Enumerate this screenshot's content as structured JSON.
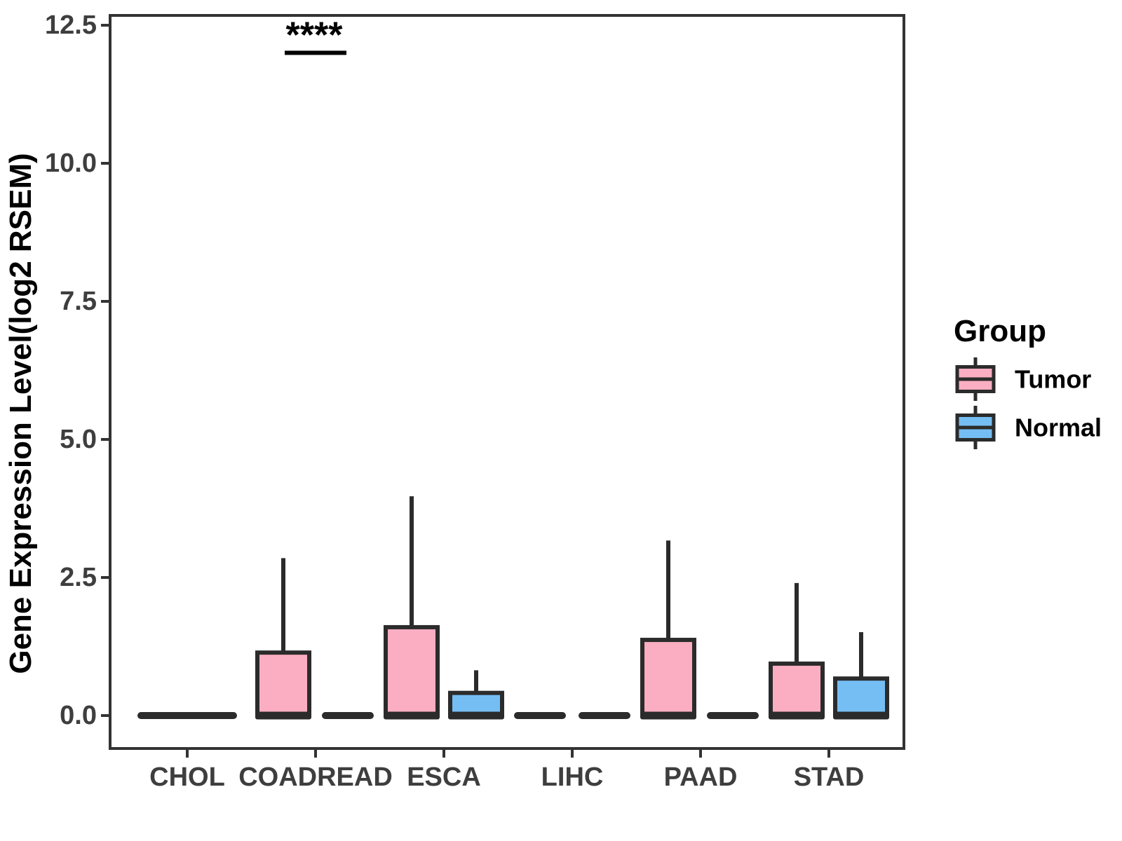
{
  "y_axis": {
    "label": "Gene Expression Level(log2 RSEM)",
    "tick_labels": [
      "0.0",
      "2.5",
      "5.0",
      "7.5",
      "10.0",
      "12.5"
    ],
    "tick_values": [
      0,
      2.5,
      5,
      7.5,
      10,
      12.5
    ]
  },
  "x_axis": {
    "categories": [
      "CHOL",
      "COADREAD",
      "ESCA",
      "LIHC",
      "PAAD",
      "STAD"
    ]
  },
  "legend": {
    "title": "Group",
    "entries": [
      {
        "label": "Tumor",
        "color": "#FBAEC2"
      },
      {
        "label": "Normal",
        "color": "#74BEF4"
      }
    ]
  },
  "annotation": {
    "text": "****",
    "category": "COADREAD",
    "y_value": 12.0
  },
  "colors": {
    "tumor": "#FBAEC2",
    "normal": "#74BEF4",
    "box_stroke": "#2B2B2B",
    "axis_text": "#3E3E3E",
    "axis_title": "#000000",
    "panel_border": "#333333"
  },
  "chart_data": {
    "type": "boxplot",
    "title": "",
    "xlabel": "",
    "ylabel": "Gene Expression Level(log2 RSEM)",
    "ylim": [
      0,
      12.5
    ],
    "yticks": [
      0,
      2.5,
      5,
      7.5,
      10,
      12.5
    ],
    "grid": false,
    "legend_position": "right",
    "categories": [
      "CHOL",
      "COADREAD",
      "ESCA",
      "LIHC",
      "PAAD",
      "STAD"
    ],
    "groups": [
      "Tumor",
      "Normal"
    ],
    "significance": [
      {
        "category": "COADREAD",
        "between": [
          "Tumor",
          "Normal"
        ],
        "label": "****",
        "bar_y": 12.0
      }
    ],
    "boxes": [
      {
        "category": "CHOL",
        "group": "Tumor",
        "min": 0,
        "q1": 0,
        "median": 0,
        "q3": 0,
        "max": 0,
        "full_width": true
      },
      {
        "category": "COADREAD",
        "group": "Tumor",
        "min": 0,
        "q1": 0,
        "median": 0,
        "q3": 1.14,
        "max": 2.85
      },
      {
        "category": "COADREAD",
        "group": "Normal",
        "min": 0,
        "q1": 0,
        "median": 0,
        "q3": 0,
        "max": 0
      },
      {
        "category": "ESCA",
        "group": "Tumor",
        "min": 0,
        "q1": 0,
        "median": 0,
        "q3": 1.6,
        "max": 3.97
      },
      {
        "category": "ESCA",
        "group": "Normal",
        "min": 0,
        "q1": 0,
        "median": 0,
        "q3": 0.41,
        "max": 0.82
      },
      {
        "category": "LIHC",
        "group": "Tumor",
        "min": 0,
        "q1": 0,
        "median": 0,
        "q3": 0,
        "max": 0
      },
      {
        "category": "LIHC",
        "group": "Normal",
        "min": 0,
        "q1": 0,
        "median": 0,
        "q3": 0,
        "max": 0
      },
      {
        "category": "PAAD",
        "group": "Tumor",
        "min": 0,
        "q1": 0,
        "median": 0,
        "q3": 1.37,
        "max": 3.17
      },
      {
        "category": "PAAD",
        "group": "Normal",
        "min": 0,
        "q1": 0,
        "median": 0,
        "q3": 0,
        "max": 0
      },
      {
        "category": "STAD",
        "group": "Tumor",
        "min": 0,
        "q1": 0,
        "median": 0,
        "q3": 0.94,
        "max": 2.4
      },
      {
        "category": "STAD",
        "group": "Normal",
        "min": 0,
        "q1": 0,
        "median": 0,
        "q3": 0.67,
        "max": 1.51
      }
    ]
  }
}
